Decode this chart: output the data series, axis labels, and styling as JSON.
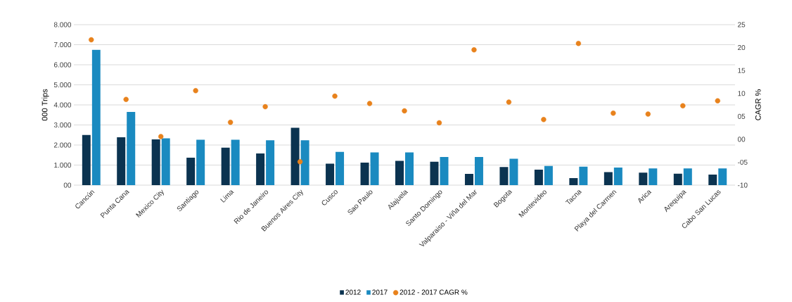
{
  "chart_data": {
    "type": "bar",
    "ylabel": "000 Trips",
    "y2label": "CAGR %",
    "categories": [
      "Cancún",
      "Punta Cana",
      "Mexico City",
      "Santiago",
      "Lima",
      "Rio de Janeiro",
      "Buenos Aires City",
      "Cusco",
      "Sao Paulo",
      "Alajuela",
      "Santo Domingo",
      "Valparaiso - Viña del Mar",
      "Bogota",
      "Montevideo",
      "Tacna",
      "Playa del Carmen",
      "Arica",
      "Arequipa",
      "Cabo San Lucas"
    ],
    "series": [
      {
        "name": "2012",
        "color": "#0b3350",
        "values": [
          2500,
          2390,
          2280,
          1370,
          1870,
          1580,
          2860,
          1070,
          1120,
          1210,
          1170,
          560,
          900,
          770,
          350,
          650,
          620,
          570,
          530
        ]
      },
      {
        "name": "2017",
        "color": "#1a8ac0",
        "values": [
          6750,
          3650,
          2330,
          2260,
          2260,
          2240,
          2240,
          1660,
          1630,
          1630,
          1400,
          1400,
          1320,
          960,
          920,
          880,
          830,
          830,
          830
        ]
      },
      {
        "name": "2012 - 2017 CAGR %",
        "type": "scatter",
        "axis": "y2",
        "color": "#e8821c",
        "values": [
          21.7,
          8.7,
          0.6,
          10.6,
          3.7,
          7.1,
          -4.9,
          9.4,
          7.8,
          6.2,
          3.6,
          19.5,
          8.1,
          4.3,
          20.9,
          5.7,
          5.5,
          7.3,
          8.4
        ]
      }
    ],
    "ylim": [
      0,
      8000
    ],
    "yticks": [
      {
        "value": 0,
        "label": "00"
      },
      {
        "value": 1000,
        "label": "1.000"
      },
      {
        "value": 2000,
        "label": "2.000"
      },
      {
        "value": 3000,
        "label": "3.000"
      },
      {
        "value": 4000,
        "label": "4.000"
      },
      {
        "value": 5000,
        "label": "5.000"
      },
      {
        "value": 6000,
        "label": "6.000"
      },
      {
        "value": 7000,
        "label": "7.000"
      },
      {
        "value": 8000,
        "label": "8.000"
      }
    ],
    "y2lim": [
      -10,
      25
    ],
    "y2ticks": [
      -10,
      {
        "value": -5,
        "label": "-05"
      },
      {
        "value": 0,
        "label": "00"
      },
      {
        "value": 5,
        "label": "05"
      },
      10,
      15,
      20,
      25
    ],
    "grid": "y",
    "legend": "bottom",
    "marker": "circle"
  }
}
